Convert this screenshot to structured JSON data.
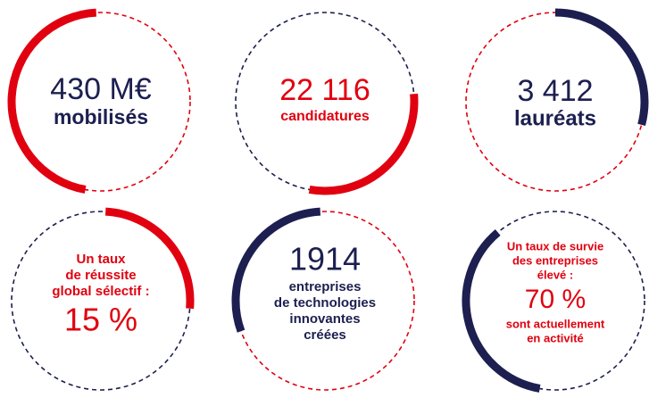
{
  "stats": [
    {
      "figure": "430 M€",
      "caption": [
        "mobilisés"
      ]
    },
    {
      "figure": "22 116",
      "caption": [
        "candidatures"
      ]
    },
    {
      "figure": "3 412",
      "caption": [
        "lauréats"
      ]
    },
    {
      "intro": [
        "Un taux",
        "de réussite",
        "global sélectif :"
      ],
      "figure": "15 %"
    },
    {
      "figure": "1914",
      "caption": [
        "entreprises",
        "de technologies",
        "innovantes",
        "créées"
      ]
    },
    {
      "intro": [
        "Un taux de survie",
        "des entreprises",
        "élevé :"
      ],
      "figure": "70 %",
      "caption": [
        "sont actuellement",
        "en activité"
      ]
    }
  ]
}
